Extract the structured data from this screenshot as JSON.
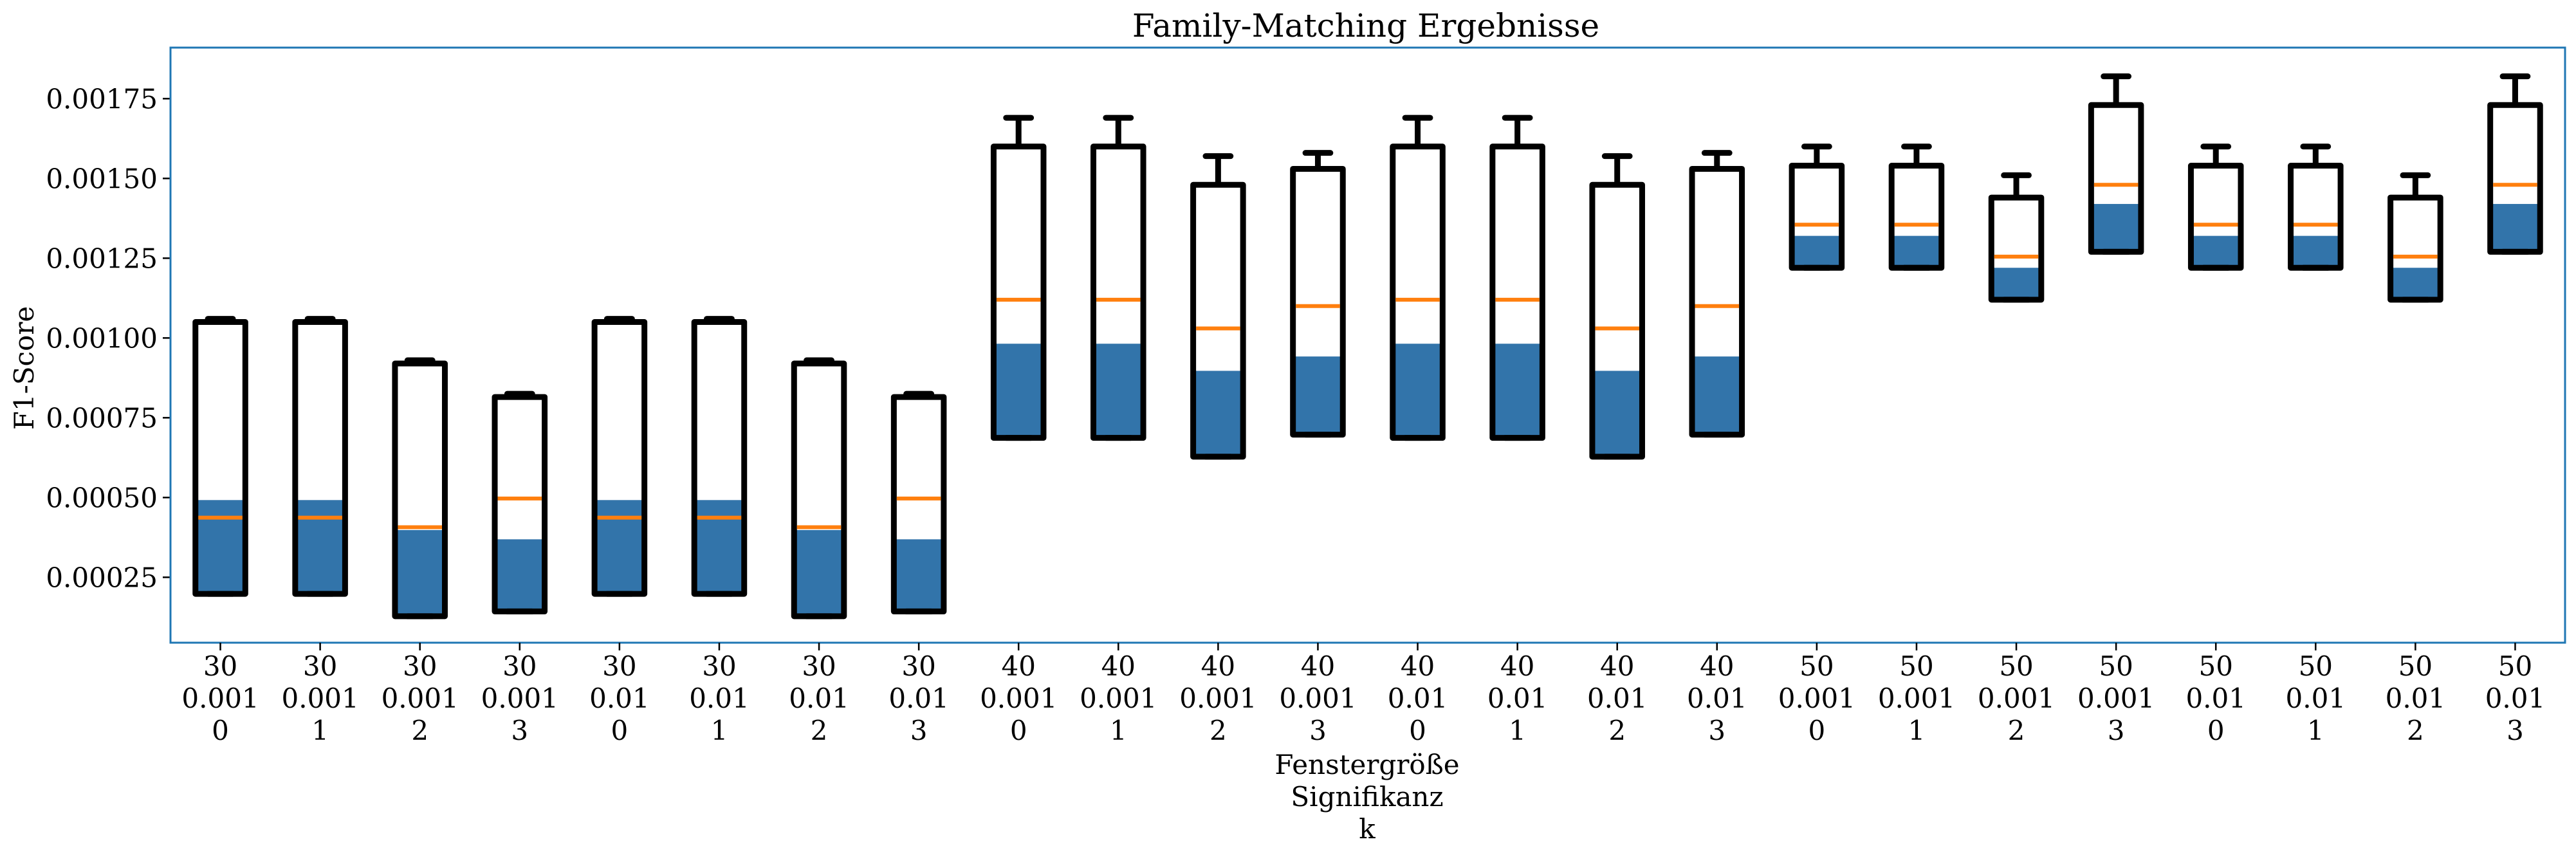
{
  "chart_data": {
    "type": "box",
    "title": "Family-Matching Ergebnisse",
    "ylabel": "F1-Score",
    "xlabel_lines": [
      "Fenstergröße",
      "Signifikanz",
      "k"
    ],
    "ylim": [
      4.5e-05,
      0.00191
    ],
    "yticks": [
      0.00025,
      0.0005,
      0.00075,
      0.001,
      0.00125,
      0.0015,
      0.00175
    ],
    "ytick_labels": [
      "0.00025",
      "0.00050",
      "0.00075",
      "0.00100",
      "0.00125",
      "0.00150",
      "0.00175"
    ],
    "categories": [
      [
        "30",
        "0.001",
        "0"
      ],
      [
        "30",
        "0.001",
        "1"
      ],
      [
        "30",
        "0.001",
        "2"
      ],
      [
        "30",
        "0.001",
        "3"
      ],
      [
        "30",
        "0.01",
        "0"
      ],
      [
        "30",
        "0.01",
        "1"
      ],
      [
        "30",
        "0.01",
        "2"
      ],
      [
        "30",
        "0.01",
        "3"
      ],
      [
        "40",
        "0.001",
        "0"
      ],
      [
        "40",
        "0.001",
        "1"
      ],
      [
        "40",
        "0.001",
        "2"
      ],
      [
        "40",
        "0.001",
        "3"
      ],
      [
        "40",
        "0.01",
        "0"
      ],
      [
        "40",
        "0.01",
        "1"
      ],
      [
        "40",
        "0.01",
        "2"
      ],
      [
        "40",
        "0.01",
        "3"
      ],
      [
        "50",
        "0.001",
        "0"
      ],
      [
        "50",
        "0.001",
        "1"
      ],
      [
        "50",
        "0.001",
        "2"
      ],
      [
        "50",
        "0.001",
        "3"
      ],
      [
        "50",
        "0.01",
        "0"
      ],
      [
        "50",
        "0.01",
        "1"
      ],
      [
        "50",
        "0.01",
        "2"
      ],
      [
        "50",
        "0.01",
        "3"
      ]
    ],
    "boxes": [
      {
        "whislo": 0.000198,
        "q1": 0.000198,
        "median": 0.000437,
        "mean": 0.000492,
        "q3": 0.00105,
        "whishi": 0.00106
      },
      {
        "whislo": 0.000198,
        "q1": 0.000198,
        "median": 0.000437,
        "mean": 0.000492,
        "q3": 0.00105,
        "whishi": 0.00106
      },
      {
        "whislo": 0.000128,
        "q1": 0.000128,
        "median": 0.000407,
        "mean": 0.000398,
        "q3": 0.00092,
        "whishi": 0.00093
      },
      {
        "whislo": 0.000143,
        "q1": 0.000143,
        "median": 0.000497,
        "mean": 0.000369,
        "q3": 0.000815,
        "whishi": 0.000825
      },
      {
        "whislo": 0.000198,
        "q1": 0.000198,
        "median": 0.000437,
        "mean": 0.000492,
        "q3": 0.00105,
        "whishi": 0.00106
      },
      {
        "whislo": 0.000198,
        "q1": 0.000198,
        "median": 0.000437,
        "mean": 0.000492,
        "q3": 0.00105,
        "whishi": 0.00106
      },
      {
        "whislo": 0.000128,
        "q1": 0.000128,
        "median": 0.000407,
        "mean": 0.000398,
        "q3": 0.00092,
        "whishi": 0.00093
      },
      {
        "whislo": 0.000143,
        "q1": 0.000143,
        "median": 0.000497,
        "mean": 0.000369,
        "q3": 0.000815,
        "whishi": 0.000825
      },
      {
        "whislo": 0.000687,
        "q1": 0.000687,
        "median": 0.00112,
        "mean": 0.000982,
        "q3": 0.0016,
        "whishi": 0.00169
      },
      {
        "whislo": 0.000687,
        "q1": 0.000687,
        "median": 0.00112,
        "mean": 0.000982,
        "q3": 0.0016,
        "whishi": 0.00169
      },
      {
        "whislo": 0.000628,
        "q1": 0.000628,
        "median": 0.00103,
        "mean": 0.000897,
        "q3": 0.00148,
        "whishi": 0.00157
      },
      {
        "whislo": 0.000697,
        "q1": 0.000697,
        "median": 0.0011,
        "mean": 0.000942,
        "q3": 0.00153,
        "whishi": 0.00158
      },
      {
        "whislo": 0.000687,
        "q1": 0.000687,
        "median": 0.00112,
        "mean": 0.000982,
        "q3": 0.0016,
        "whishi": 0.00169
      },
      {
        "whislo": 0.000687,
        "q1": 0.000687,
        "median": 0.00112,
        "mean": 0.000982,
        "q3": 0.0016,
        "whishi": 0.00169
      },
      {
        "whislo": 0.000628,
        "q1": 0.000628,
        "median": 0.00103,
        "mean": 0.000897,
        "q3": 0.00148,
        "whishi": 0.00157
      },
      {
        "whislo": 0.000697,
        "q1": 0.000697,
        "median": 0.0011,
        "mean": 0.000942,
        "q3": 0.00153,
        "whishi": 0.00158
      },
      {
        "whislo": 0.00122,
        "q1": 0.00122,
        "median": 0.001355,
        "mean": 0.00132,
        "q3": 0.00154,
        "whishi": 0.0016
      },
      {
        "whislo": 0.00122,
        "q1": 0.00122,
        "median": 0.001355,
        "mean": 0.00132,
        "q3": 0.00154,
        "whishi": 0.0016
      },
      {
        "whislo": 0.00112,
        "q1": 0.00112,
        "median": 0.001255,
        "mean": 0.00122,
        "q3": 0.00144,
        "whishi": 0.00151
      },
      {
        "whislo": 0.00127,
        "q1": 0.00127,
        "median": 0.00148,
        "mean": 0.00142,
        "q3": 0.00173,
        "whishi": 0.00182
      },
      {
        "whislo": 0.00122,
        "q1": 0.00122,
        "median": 0.001355,
        "mean": 0.00132,
        "q3": 0.00154,
        "whishi": 0.0016
      },
      {
        "whislo": 0.00122,
        "q1": 0.00122,
        "median": 0.001355,
        "mean": 0.00132,
        "q3": 0.00154,
        "whishi": 0.0016
      },
      {
        "whislo": 0.00112,
        "q1": 0.00112,
        "median": 0.001255,
        "mean": 0.00122,
        "q3": 0.00144,
        "whishi": 0.00151
      },
      {
        "whislo": 0.00127,
        "q1": 0.00127,
        "median": 0.00148,
        "mean": 0.00142,
        "q3": 0.00173,
        "whishi": 0.00182
      }
    ],
    "grid": false,
    "legend": "none",
    "colors": {
      "axes_frame": "#1f77b4",
      "box_outline": "#000000",
      "mean_fill": "#3274aa",
      "median_line": "#ff7f0e",
      "background": "#ffffff"
    }
  }
}
